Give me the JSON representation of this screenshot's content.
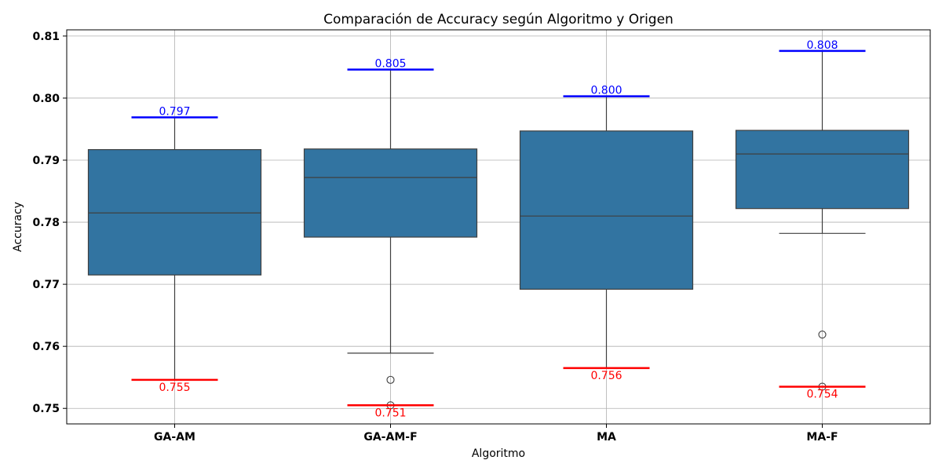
{
  "chart_data": {
    "type": "box",
    "title": "Comparación de Accuracy según Algoritmo y Origen",
    "xlabel": "Algoritmo",
    "ylabel": "Accuracy",
    "ylim": [
      0.7475,
      0.811
    ],
    "yticks": [
      0.75,
      0.76,
      0.77,
      0.78,
      0.79,
      0.8,
      0.81
    ],
    "ytick_labels": [
      "0.75",
      "0.76",
      "0.77",
      "0.78",
      "0.79",
      "0.80",
      "0.81"
    ],
    "grid": true,
    "box_color": "#3274a1",
    "max_color": "#0000ff",
    "min_color": "#ff0000",
    "categories": [
      "GA-AM",
      "GA-AM-F",
      "MA",
      "MA-F"
    ],
    "boxes": [
      {
        "category": "GA-AM",
        "whisker_low": 0.7546,
        "q1": 0.7715,
        "median": 0.7815,
        "q3": 0.7917,
        "whisker_high": 0.7969,
        "outliers": [],
        "max_value": 0.7969,
        "max_label": "0.797",
        "min_value": 0.7546,
        "min_label": "0.755"
      },
      {
        "category": "GA-AM-F",
        "whisker_low": 0.7589,
        "q1": 0.7776,
        "median": 0.7872,
        "q3": 0.7918,
        "whisker_high": 0.8046,
        "outliers": [
          0.7546,
          0.7505
        ],
        "max_value": 0.8046,
        "max_label": "0.805",
        "min_value": 0.7505,
        "min_label": "0.751"
      },
      {
        "category": "MA",
        "whisker_low": 0.7565,
        "q1": 0.7692,
        "median": 0.781,
        "q3": 0.7947,
        "whisker_high": 0.8003,
        "outliers": [],
        "max_value": 0.8003,
        "max_label": "0.800",
        "min_value": 0.7565,
        "min_label": "0.756"
      },
      {
        "category": "MA-F",
        "whisker_low": 0.7782,
        "q1": 0.7822,
        "median": 0.791,
        "q3": 0.7948,
        "whisker_high": 0.8076,
        "outliers": [
          0.7619,
          0.7535
        ],
        "max_value": 0.8076,
        "max_label": "0.808",
        "min_value": 0.7535,
        "min_label": "0.754"
      }
    ]
  }
}
